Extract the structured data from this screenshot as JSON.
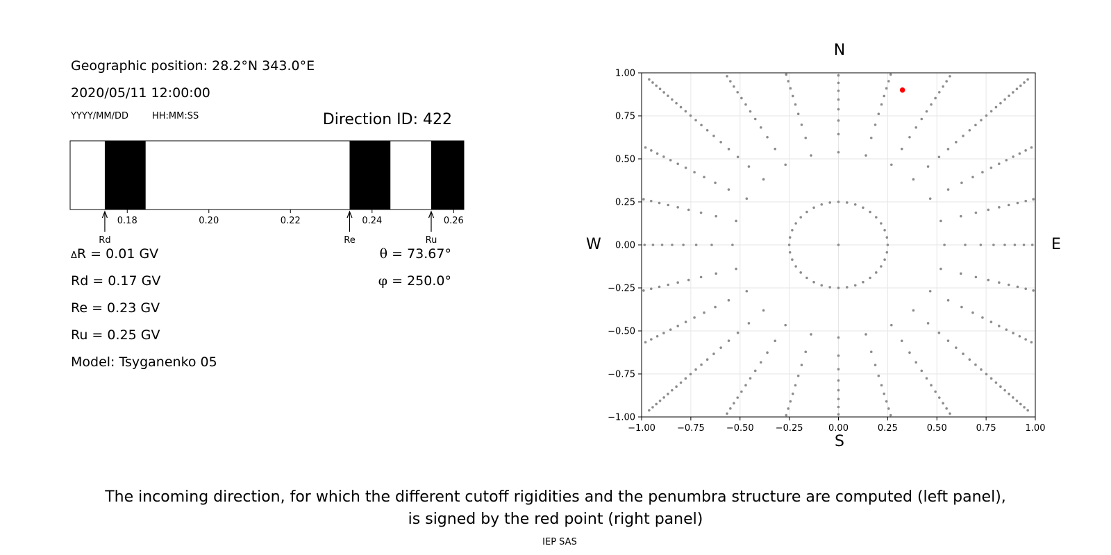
{
  "left_panel": {
    "geo_position": "Geographic position: 28.2°N 343.0°E",
    "datetime": "2020/05/11 12:00:00",
    "date_format": "YYYY/MM/DD",
    "time_format": "HH:MM:SS",
    "direction_id": "Direction ID: 422",
    "delta_r_symbol": "Δ",
    "delta_r": "R = 0.01 GV",
    "rd": "Rd = 0.17 GV",
    "re": "Re = 0.23 GV",
    "ru": "Ru = 0.25 GV",
    "model": "Model: Tsyganenko 05",
    "theta_symbol": "θ",
    "theta": " = 73.67°",
    "phi_symbol": "φ",
    "phi": " = 250.0°"
  },
  "penumbra_bar": {
    "xlim": [
      0.166,
      0.2625
    ],
    "ticks": [
      0.18,
      0.2,
      0.22,
      0.24,
      0.26
    ],
    "tick_labels": [
      "0.18",
      "0.20",
      "0.22",
      "0.24",
      "0.26"
    ],
    "forbidden_bands": [
      [
        0.1745,
        0.1845
      ],
      [
        0.2345,
        0.2445
      ],
      [
        0.2545,
        0.2625
      ]
    ],
    "markers": [
      {
        "label": "Rd",
        "value": 0.1745
      },
      {
        "label": "Re",
        "value": 0.2345
      },
      {
        "label": "Ru",
        "value": 0.2545
      }
    ]
  },
  "chart_data": {
    "type": "scatter",
    "xlim": [
      -1.0,
      1.0
    ],
    "ylim": [
      -1.0,
      1.0
    ],
    "grid": true,
    "x_tick_labels": [
      "−1.00",
      "−0.75",
      "−0.50",
      "−0.25",
      "0.00",
      "0.25",
      "0.50",
      "0.75",
      "1.00"
    ],
    "y_tick_labels": [
      "1.00",
      "0.75",
      "0.50",
      "0.25",
      "0.00",
      "−0.25",
      "−0.50",
      "−0.75",
      "−1.00"
    ],
    "compass": {
      "north": "N",
      "south": "S",
      "west": "W",
      "east": "E"
    },
    "grid_directions": {
      "radius_step": 0.25,
      "azimuth_step_deg": 15,
      "dots_per_ray": 20,
      "max_radius": 1.0,
      "color": "#8c8c8c"
    },
    "selected_point": {
      "x": 0.325,
      "y": 0.9,
      "color": "#ff0000"
    }
  },
  "caption": {
    "line1": "The incoming direction, for which the different cutoff rigidities and the penumbra structure are computed (left panel),",
    "line2": "is signed by the red point (right panel)",
    "credit": "IEP SAS"
  }
}
